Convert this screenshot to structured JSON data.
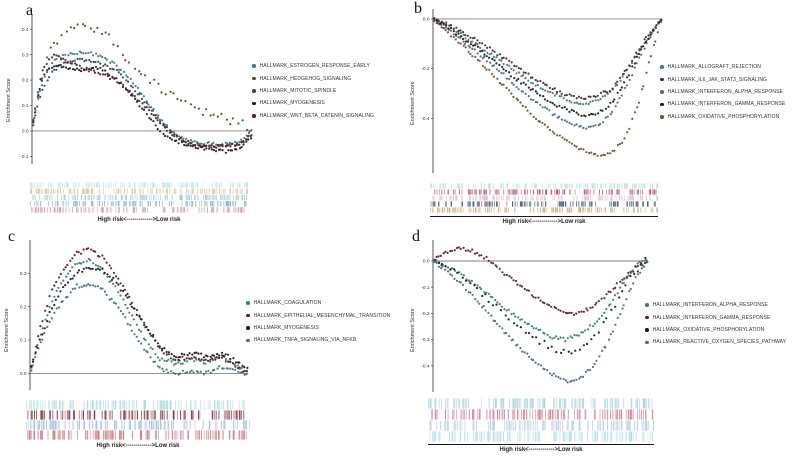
{
  "figure": {
    "ylabel": "Enrichment Score",
    "risk_label": "High risk<------------->Low risk"
  },
  "chart_data": [
    {
      "panel": "a",
      "type": "scatter",
      "xlabel": "High risk<------------->Low risk",
      "ylabel": "Enrichment Score",
      "ylim": [
        -0.13,
        0.46
      ],
      "ytick_values": [
        0.4,
        0.3,
        0.2,
        0.1,
        0.0,
        -0.1
      ],
      "ytick_labels": [
        "0.4",
        "0.3",
        "0.2",
        "0.1",
        "0.0",
        "-0.1"
      ],
      "x_keypoints": [
        0,
        0.02,
        0.05,
        0.1,
        0.15,
        0.22,
        0.3,
        0.38,
        0.45,
        0.52,
        0.58,
        0.65,
        0.72,
        0.8,
        0.88,
        0.95,
        1.0
      ],
      "series": [
        {
          "name": "HALLMARK_ESTROGEN_RESPONSE_EARLY",
          "color": "#3e7d78",
          "rug_color": "#bfe3e6",
          "es": [
            0,
            0.1,
            0.2,
            0.28,
            0.3,
            0.31,
            0.3,
            0.26,
            0.2,
            0.12,
            0.05,
            -0.01,
            -0.04,
            -0.05,
            -0.05,
            -0.04,
            0.0
          ]
        },
        {
          "name": "HALLMARK_HEDGEHOG_SIGNALING",
          "color": "#5d4a2a",
          "rug_color": "#d4c4a0",
          "sparse": true,
          "jitter": 0.018,
          "es": [
            0,
            0.12,
            0.24,
            0.35,
            0.38,
            0.41,
            0.4,
            0.34,
            0.27,
            0.22,
            0.17,
            0.14,
            0.1,
            0.07,
            0.05,
            0.03,
            0.0
          ]
        },
        {
          "name": "HALLMARK_MITOTIC_SPINDLE",
          "color": "#2f4a57",
          "rug_color": "#a8c4e0",
          "es": [
            0,
            0.08,
            0.17,
            0.24,
            0.27,
            0.28,
            0.27,
            0.24,
            0.18,
            0.11,
            0.04,
            -0.02,
            -0.05,
            -0.06,
            -0.06,
            -0.05,
            -0.01
          ]
        },
        {
          "name": "HALLMARK_MYOGENESIS",
          "color": "#1c1c1c",
          "rug_color": "#8fb8c8",
          "es": [
            0,
            0.11,
            0.22,
            0.26,
            0.25,
            0.24,
            0.25,
            0.21,
            0.14,
            0.07,
            0.0,
            -0.04,
            -0.06,
            -0.07,
            -0.08,
            -0.07,
            -0.02
          ]
        },
        {
          "name": "HALLMARK_WNT_BETA_CATENIN_SIGNALING",
          "color": "#59222e",
          "rug_color": "#d4a0ac",
          "es": [
            0,
            0.13,
            0.25,
            0.3,
            0.28,
            0.25,
            0.23,
            0.2,
            0.15,
            0.09,
            0.03,
            -0.02,
            -0.05,
            -0.06,
            -0.06,
            -0.05,
            -0.01
          ]
        }
      ]
    },
    {
      "panel": "b",
      "type": "scatter",
      "xlabel": "High risk<------------->Low risk",
      "ylabel": "Enrichment Score",
      "ylim": [
        -0.62,
        0.04
      ],
      "ytick_values": [
        0.0,
        -0.2,
        -0.4
      ],
      "ytick_labels": [
        "0.0",
        "-0.2",
        "-0.4"
      ],
      "x_keypoints": [
        0,
        0.06,
        0.12,
        0.2,
        0.28,
        0.36,
        0.44,
        0.52,
        0.6,
        0.66,
        0.72,
        0.78,
        0.84,
        0.9,
        0.95,
        1.0
      ],
      "series": [
        {
          "name": "HALLMARK_ALLOGRAFT_REJECTION",
          "color": "#3e7d78",
          "rug_color": "#b8dce2",
          "es": [
            0,
            -0.03,
            -0.06,
            -0.11,
            -0.16,
            -0.21,
            -0.26,
            -0.3,
            -0.33,
            -0.34,
            -0.33,
            -0.29,
            -0.22,
            -0.13,
            -0.06,
            0.0
          ]
        },
        {
          "name": "HALLMARK_IL6_JAK_STAT3_SIGNALING",
          "color": "#59222e",
          "rug_color": "#b05a68",
          "es": [
            0,
            -0.02,
            -0.05,
            -0.09,
            -0.14,
            -0.19,
            -0.24,
            -0.28,
            -0.31,
            -0.32,
            -0.31,
            -0.28,
            -0.21,
            -0.12,
            -0.05,
            0.0
          ]
        },
        {
          "name": "HALLMARK_INTERFERON_ALPHA_RESPONSE",
          "color": "#4e6d80",
          "rug_color": "#e0c0c8",
          "es": [
            0,
            -0.04,
            -0.08,
            -0.14,
            -0.2,
            -0.27,
            -0.33,
            -0.38,
            -0.42,
            -0.44,
            -0.43,
            -0.38,
            -0.28,
            -0.16,
            -0.07,
            0.0
          ]
        },
        {
          "name": "HALLMARK_INTERFERON_GAMMA_RESPONSE",
          "color": "#1c1c1c",
          "rug_color": "#4a5a78",
          "es": [
            0,
            -0.03,
            -0.07,
            -0.12,
            -0.18,
            -0.24,
            -0.29,
            -0.34,
            -0.37,
            -0.39,
            -0.38,
            -0.34,
            -0.25,
            -0.14,
            -0.06,
            0.0
          ]
        },
        {
          "name": "HALLMARK_OXIDATIVE_PHOSPHORYLATION",
          "color": "#6b5433",
          "rug_color": "#c9ab82",
          "es": [
            0,
            -0.05,
            -0.1,
            -0.17,
            -0.24,
            -0.32,
            -0.39,
            -0.45,
            -0.5,
            -0.53,
            -0.55,
            -0.54,
            -0.48,
            -0.33,
            -0.15,
            0.0
          ]
        }
      ]
    },
    {
      "panel": "c",
      "type": "scatter",
      "xlabel": "High risk<------------->Low risk",
      "ylabel": "Enrichment Score",
      "ylim": [
        -0.05,
        0.4
      ],
      "ytick_values": [
        0.3,
        0.2,
        0.1,
        0.0
      ],
      "ytick_labels": [
        "0.3",
        "0.2",
        "0.1",
        "0.0"
      ],
      "x_keypoints": [
        0,
        0.04,
        0.09,
        0.15,
        0.21,
        0.27,
        0.33,
        0.4,
        0.47,
        0.54,
        0.6,
        0.67,
        0.74,
        0.81,
        0.88,
        0.94,
        1.0
      ],
      "series": [
        {
          "name": "HALLMARK_COAGULATION",
          "color": "#3e7d78",
          "rug_color": "#aadce0",
          "es": [
            0,
            0.1,
            0.2,
            0.28,
            0.33,
            0.34,
            0.31,
            0.25,
            0.17,
            0.09,
            0.04,
            0.03,
            0.04,
            0.03,
            0.05,
            0.03,
            0.0
          ]
        },
        {
          "name": "HALLMARK_EPITHELIAL_MESENCHYMAL_TRANSITION",
          "color": "#59222e",
          "rug_color": "#8a3a4a",
          "es": [
            0,
            0.12,
            0.23,
            0.31,
            0.36,
            0.37,
            0.35,
            0.29,
            0.21,
            0.13,
            0.07,
            0.04,
            0.05,
            0.04,
            0.05,
            0.02,
            0.0
          ]
        },
        {
          "name": "HALLMARK_MYOGENESIS",
          "color": "#1c1c1c",
          "rug_color": "#a8c0dc",
          "es": [
            0,
            0.09,
            0.18,
            0.26,
            0.3,
            0.32,
            0.31,
            0.27,
            0.2,
            0.13,
            0.08,
            0.05,
            0.06,
            0.05,
            0.06,
            0.04,
            0.01
          ]
        },
        {
          "name": "HALLMARK_TNFA_SIGNALING_VIA_NFKB",
          "color": "#48707a",
          "rug_color": "#c87882",
          "es": [
            0,
            0.08,
            0.16,
            0.22,
            0.26,
            0.27,
            0.25,
            0.2,
            0.13,
            0.06,
            0.01,
            0.0,
            0.01,
            0.0,
            0.02,
            0.01,
            -0.01
          ]
        }
      ]
    },
    {
      "panel": "d",
      "type": "scatter",
      "xlabel": "High risk<------------->Low risk",
      "ylabel": "Enrichment Score",
      "ylim": [
        -0.5,
        0.08
      ],
      "ytick_values": [
        0.0,
        -0.1,
        -0.2,
        -0.3,
        -0.4
      ],
      "ytick_labels": [
        "0.0",
        "-0.1",
        "-0.2",
        "-0.3",
        "-0.4"
      ],
      "x_keypoints": [
        0,
        0.05,
        0.11,
        0.18,
        0.25,
        0.32,
        0.4,
        0.48,
        0.55,
        0.62,
        0.68,
        0.75,
        0.82,
        0.88,
        0.94,
        1.0
      ],
      "series": [
        {
          "name": "HALLMARK_INTERFERON_ALPHA_RESPONSE",
          "color": "#3e7d78",
          "rug_color": "#a8d4dc",
          "es": [
            0,
            -0.02,
            -0.04,
            -0.08,
            -0.12,
            -0.17,
            -0.22,
            -0.26,
            -0.29,
            -0.3,
            -0.28,
            -0.24,
            -0.17,
            -0.09,
            -0.02,
            0.01
          ]
        },
        {
          "name": "HALLMARK_INTERFERON_GAMMA_RESPONSE",
          "color": "#59222e",
          "rug_color": "#cc8090",
          "es": [
            0,
            0.03,
            0.05,
            0.04,
            0.01,
            -0.04,
            -0.09,
            -0.14,
            -0.17,
            -0.2,
            -0.2,
            -0.17,
            -0.12,
            -0.07,
            -0.03,
            0.0
          ]
        },
        {
          "name": "HALLMARK_OXIDATIVE_PHOSPHORYLATION",
          "color": "#1c1c1c",
          "rug_color": "#b8cce4",
          "sparse": true,
          "jitter": 0.012,
          "es": [
            0,
            -0.01,
            -0.04,
            -0.09,
            -0.14,
            -0.2,
            -0.26,
            -0.3,
            -0.33,
            -0.35,
            -0.34,
            -0.29,
            -0.21,
            -0.12,
            -0.04,
            0.01
          ]
        },
        {
          "name": "HALLMARK_REACTIVE_OXYGEN_SPECIES_PATHWAY",
          "color": "#4e6d80",
          "rug_color": "#b4dce2",
          "es": [
            0,
            -0.03,
            -0.07,
            -0.13,
            -0.19,
            -0.26,
            -0.33,
            -0.39,
            -0.43,
            -0.46,
            -0.45,
            -0.4,
            -0.3,
            -0.18,
            -0.07,
            0.0
          ]
        }
      ]
    }
  ]
}
